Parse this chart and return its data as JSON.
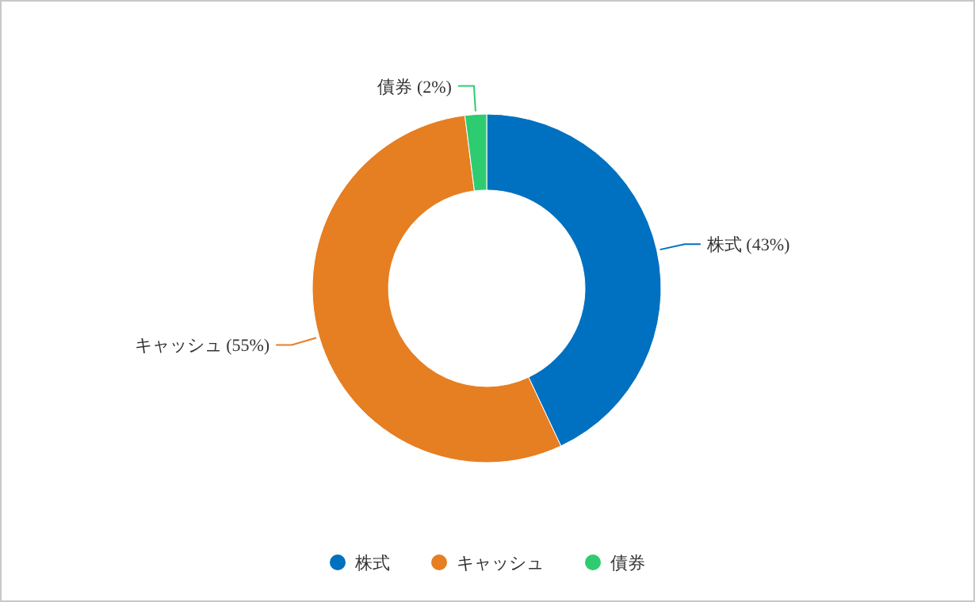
{
  "chart_data": {
    "type": "donut",
    "categories": [
      "株式",
      "キャッシュ",
      "債券"
    ],
    "values": [
      43,
      55,
      2
    ],
    "value_labels": [
      "(43%)",
      "(55%)",
      "(2%)"
    ],
    "colors": [
      "#0070c0",
      "#e67e22",
      "#2ecc71"
    ],
    "legend": "bottom"
  }
}
